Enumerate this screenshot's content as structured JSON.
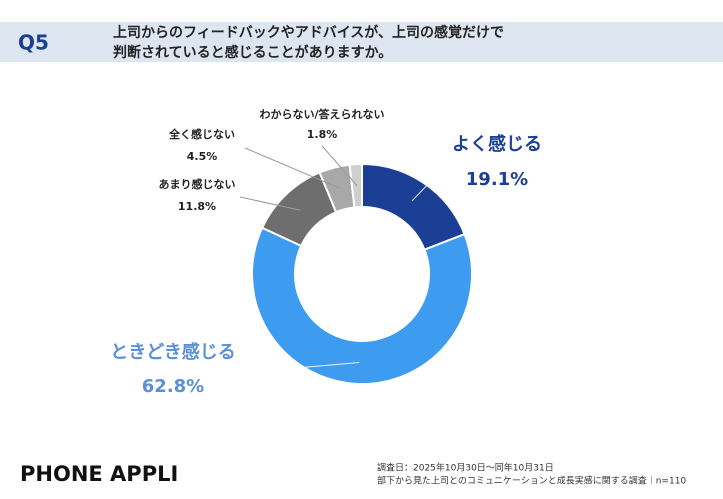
{
  "chart_data": {
    "type": "donut",
    "question_number": "Q5",
    "question": [
      "上司からのフィードバックやアドバイスが、上司の感覚だけで",
      "判断されていると感じることがありますか。"
    ],
    "categories": [
      "よく感じる",
      "ときどき感じる",
      "あまり感じない",
      "全く感じない",
      "わからない/答えられない"
    ],
    "values": [
      19.1,
      62.8,
      11.8,
      4.5,
      1.8
    ],
    "value_labels": [
      "19.1%",
      "62.8%",
      "11.8%",
      "4.5%",
      "1.8%"
    ],
    "colors": [
      "#1b3f95",
      "#3d9bf0",
      "#6e6e6e",
      "#a8a8a8",
      "#cfcfcf"
    ],
    "brand": "PHONE APPLI",
    "notes": [
      "調査日：2025年10月30日～同年10月31日",
      "部下から見た上司とのコミュニケーションと成長実感に関する調査｜n=110"
    ]
  }
}
